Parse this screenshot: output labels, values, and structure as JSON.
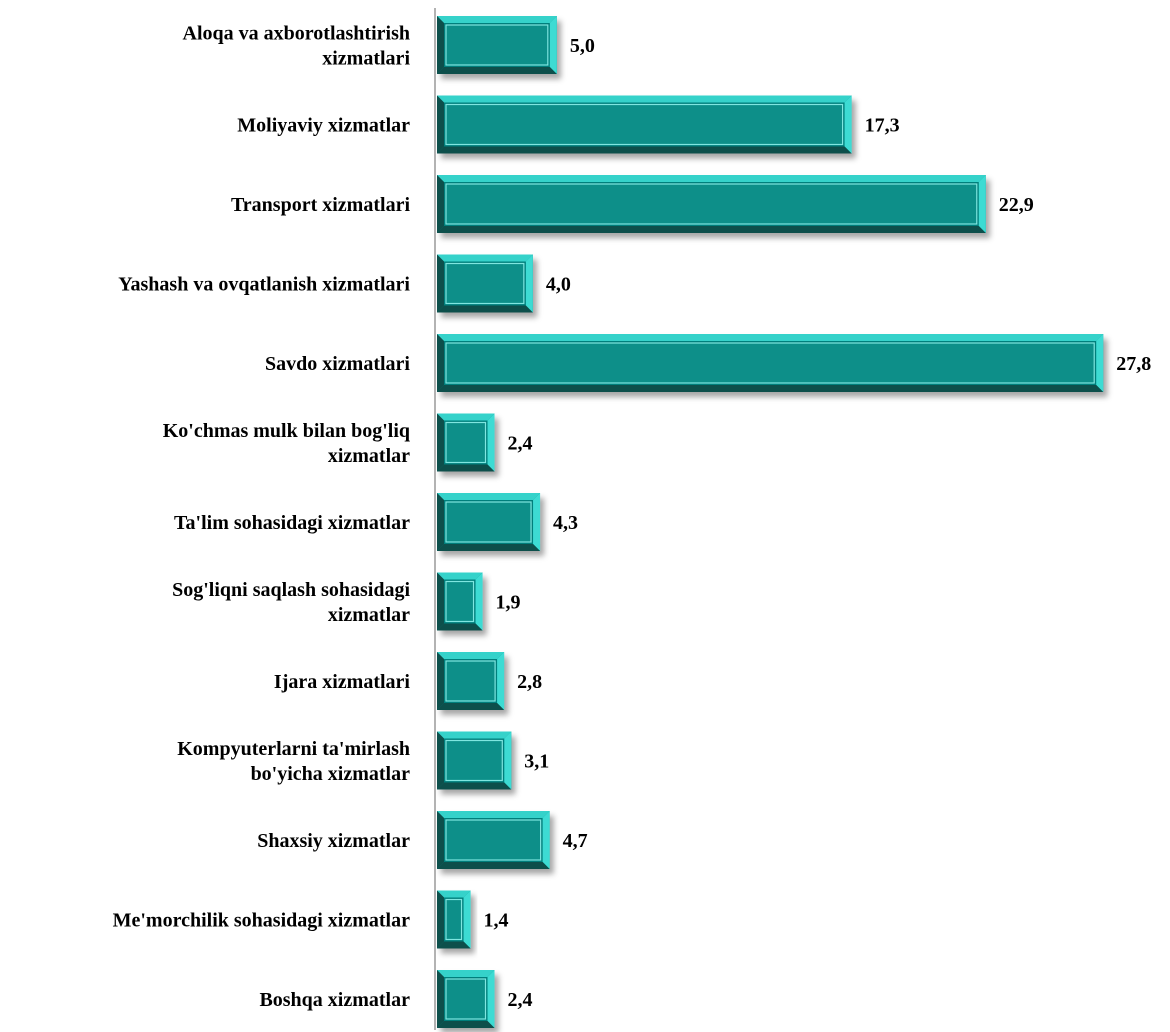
{
  "chart_data": {
    "type": "bar",
    "orientation": "horizontal",
    "categories": [
      [
        "Aloqa va axborotlashtirish",
        "xizmatlari"
      ],
      [
        "Moliyaviy xizmatlar"
      ],
      [
        "Transport xizmatlari"
      ],
      [
        "Yashash va ovqatlanish xizmatlari"
      ],
      [
        "Savdo xizmatlari"
      ],
      [
        "Ko'chmas mulk bilan bog'liq",
        "xizmatlar"
      ],
      [
        "Ta'lim sohasidagi xizmatlar"
      ],
      [
        "Sog'liqni saqlash sohasidagi",
        "xizmatlar"
      ],
      [
        "Ijara xizmatlari"
      ],
      [
        "Kompyuterlarni ta'mirlash",
        "bo'yicha xizmatlar"
      ],
      [
        "Shaxsiy xizmatlar"
      ],
      [
        "Me'morchilik sohasidagi xizmatlar"
      ],
      [
        "Boshqa xizmatlar"
      ]
    ],
    "values": [
      5.0,
      17.3,
      22.9,
      4.0,
      27.8,
      2.4,
      4.3,
      1.9,
      2.8,
      3.1,
      4.7,
      1.4,
      2.4
    ],
    "value_labels": [
      "5,0",
      "17,3",
      "22,9",
      "4,0",
      "27,8",
      "2,4",
      "4,3",
      "1,9",
      "2,8",
      "3,1",
      "4,7",
      "1,4",
      "2,4"
    ],
    "xlim": [
      0,
      28
    ],
    "grid": false,
    "legend": "none",
    "title": "",
    "xlabel": "",
    "ylabel": "",
    "colors": {
      "bar_fill": "#007F7C",
      "bar_inner": "#0E8F89",
      "bar_highlight": "#40E0D8",
      "bar_shadow": "#0A4F4C",
      "axis": "#9A9A9A"
    }
  }
}
